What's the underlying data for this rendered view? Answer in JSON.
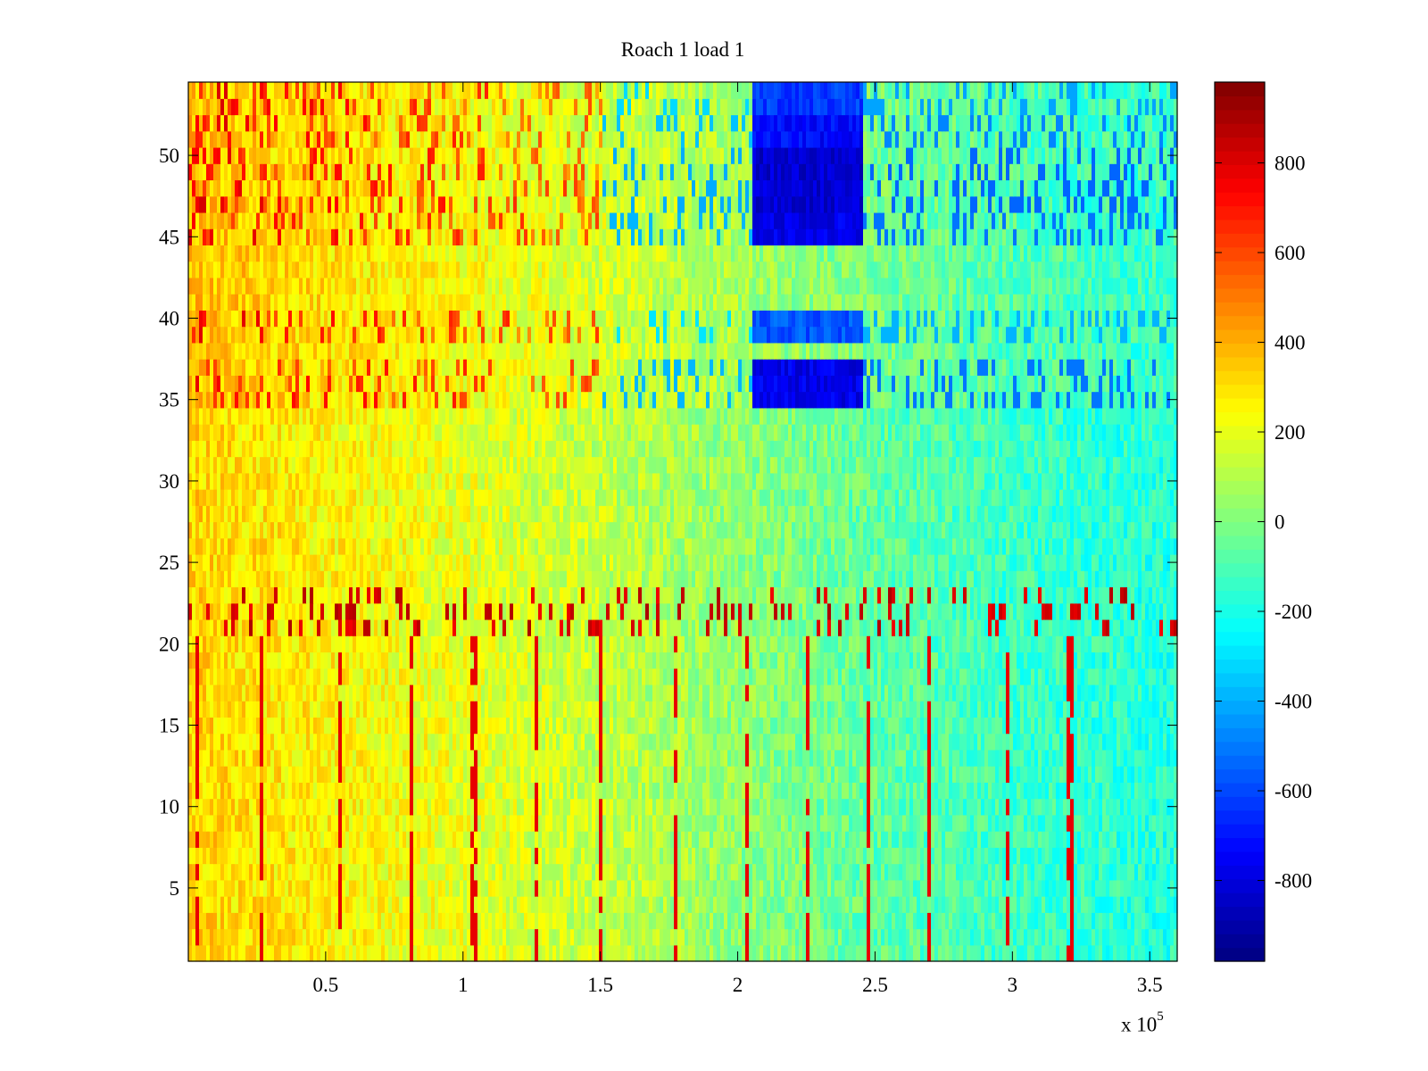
{
  "chart_data": {
    "type": "heatmap",
    "title": "Roach 1 load 1",
    "xlabel": "",
    "ylabel": "",
    "x_exponent_label": "x 10",
    "x_exponent": "5",
    "xlim": [
      0,
      360000
    ],
    "ylim": [
      0.5,
      54.5
    ],
    "xticks": [
      50000,
      100000,
      150000,
      200000,
      250000,
      300000,
      350000
    ],
    "xtick_labels": [
      "0.5",
      "1",
      "1.5",
      "2",
      "2.5",
      "3",
      "3.5"
    ],
    "yticks": [
      5,
      10,
      15,
      20,
      25,
      30,
      35,
      40,
      45,
      50
    ],
    "ytick_labels": [
      "5",
      "10",
      "15",
      "20",
      "25",
      "30",
      "35",
      "40",
      "45",
      "50"
    ],
    "rows": 54,
    "colormap": "jet",
    "clim": [
      -980,
      980
    ],
    "colorbar_ticks": [
      800,
      600,
      400,
      200,
      0,
      -200,
      -400,
      -600,
      -800
    ],
    "colorbar_tick_labels": [
      "800",
      "600",
      "400",
      "200",
      "0",
      "-200",
      "-400",
      "-600",
      "-800"
    ],
    "baseline_trend": {
      "x": [
        0,
        50000,
        100000,
        150000,
        200000,
        250000,
        300000,
        360000
      ],
      "value": [
        330,
        260,
        200,
        130,
        30,
        -60,
        -130,
        -180
      ]
    },
    "high_value_columns_x": [
      3000,
      27000,
      55000,
      81000,
      104000,
      127000,
      150000,
      177000,
      203000,
      225000,
      248000,
      270000,
      298000,
      321000
    ],
    "row_bands": [
      {
        "rows": [
          21,
          23
        ],
        "note": "",
        "spike_value": 900
      },
      {
        "rows": [
          35,
          37
        ],
        "low_value": -850
      },
      {
        "rows": [
          39,
          40
        ],
        "low_value": -650
      },
      {
        "rows": [
          45,
          46
        ],
        "low_value": -850
      },
      {
        "rows": [
          47,
          50
        ],
        "low_value": -900
      },
      {
        "rows": [
          51,
          52
        ],
        "low_value": -800
      },
      {
        "rows": [
          53,
          54
        ],
        "low_value": -700
      }
    ],
    "low_value_x_range": [
      205000,
      245000
    ]
  }
}
